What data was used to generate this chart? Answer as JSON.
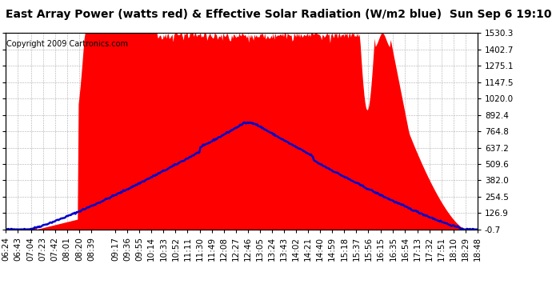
{
  "title": "East Array Power (watts red) & Effective Solar Radiation (W/m2 blue)  Sun Sep 6 19:10",
  "copyright": "Copyright 2009 Cartronics.com",
  "ylim": [
    -0.7,
    1530.3
  ],
  "yticks": [
    -0.7,
    126.9,
    254.5,
    382.0,
    509.6,
    637.2,
    764.8,
    892.4,
    1020.0,
    1147.5,
    1275.1,
    1402.7,
    1530.3
  ],
  "xtick_labels": [
    "06:24",
    "06:43",
    "07:04",
    "07:23",
    "07:42",
    "08:01",
    "08:20",
    "08:39",
    "09:17",
    "09:36",
    "09:55",
    "10:14",
    "10:33",
    "10:52",
    "11:11",
    "11:30",
    "11:49",
    "12:08",
    "12:27",
    "12:46",
    "13:05",
    "13:24",
    "13:43",
    "14:02",
    "14:21",
    "14:40",
    "14:59",
    "15:18",
    "15:37",
    "15:56",
    "16:15",
    "16:35",
    "16:54",
    "17:13",
    "17:32",
    "17:51",
    "18:10",
    "18:29",
    "18:48"
  ],
  "background_color": "#ffffff",
  "plot_bg_color": "#ffffff",
  "grid_color": "#999999",
  "red_color": "#ff0000",
  "blue_color": "#0000cc",
  "title_fontsize": 10,
  "copyright_fontsize": 7,
  "tick_fontsize": 7.5
}
